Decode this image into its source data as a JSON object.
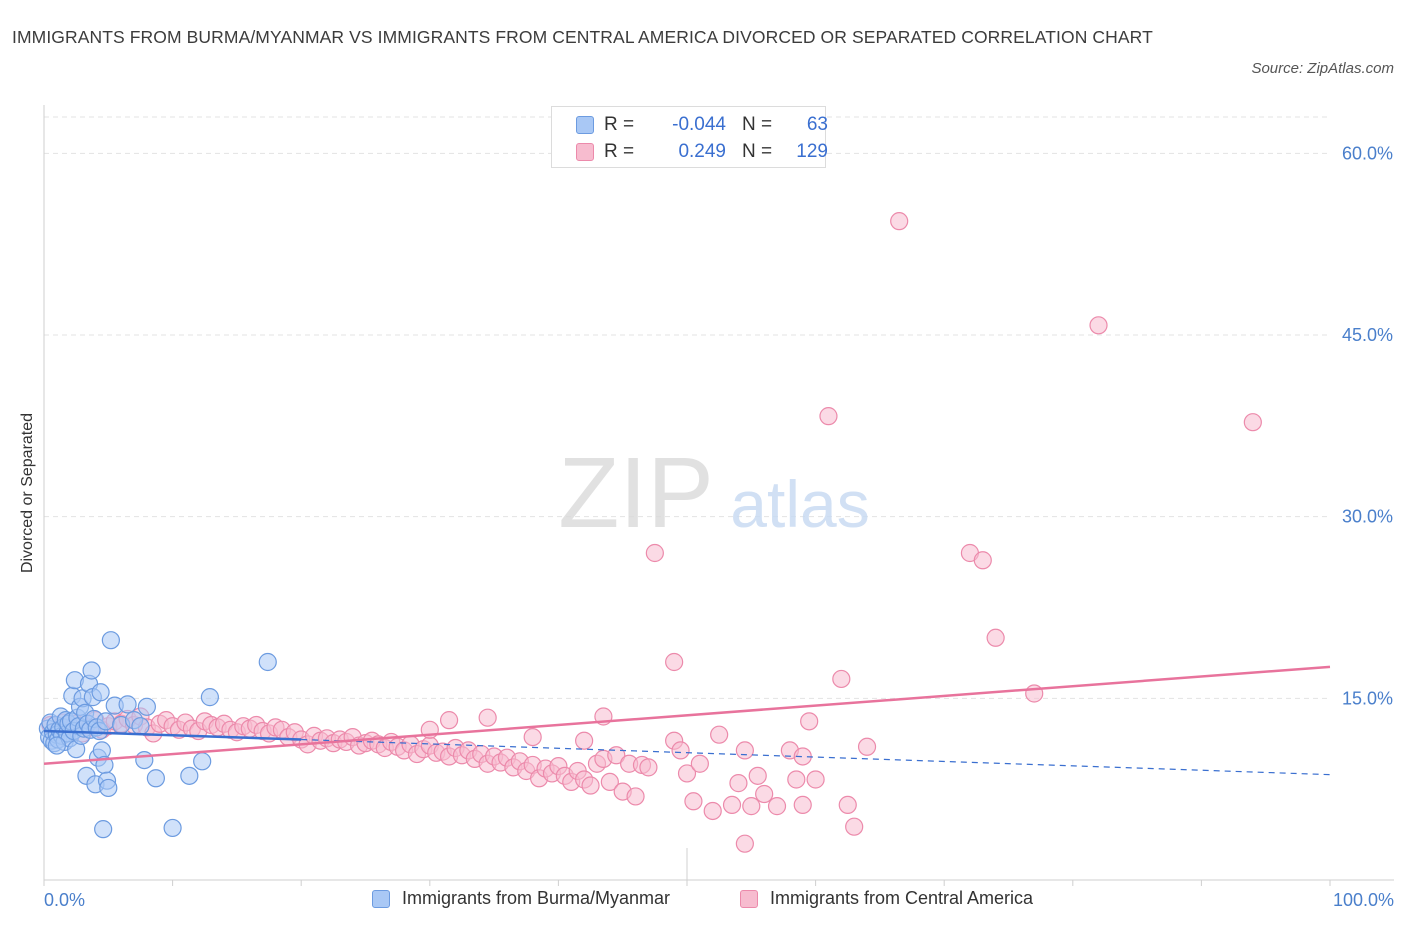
{
  "header": {
    "title": "IMMIGRANTS FROM BURMA/MYANMAR VS IMMIGRANTS FROM CENTRAL AMERICA DIVORCED OR SEPARATED CORRELATION CHART",
    "source": "Source: ZipAtlas.com"
  },
  "watermark": {
    "zip": "ZIP",
    "atlas": "atlas"
  },
  "legend": {
    "rows": [
      {
        "r_label": "R =",
        "r_value": "-0.044",
        "n_label": "N =",
        "n_value": "63"
      },
      {
        "r_label": "R =",
        "r_value": "0.249",
        "n_label": "N =",
        "n_value": "129"
      }
    ]
  },
  "chart_data": {
    "type": "scatter",
    "title": "IMMIGRANTS FROM BURMA/MYANMAR VS IMMIGRANTS FROM CENTRAL AMERICA DIVORCED OR SEPARATED CORRELATION CHART",
    "ylabel": "Divorced or Separated",
    "xlabel": "",
    "xlim": [
      0,
      100
    ],
    "ylim": [
      0,
      63
    ],
    "x_tick_labels": [
      "0.0%",
      "100.0%"
    ],
    "y_ticks": [
      {
        "value": 15,
        "label": "15.0%"
      },
      {
        "value": 30,
        "label": "30.0%"
      },
      {
        "value": 45,
        "label": "45.0%"
      },
      {
        "value": 60,
        "label": "60.0%"
      }
    ],
    "grid": true,
    "legend_position": "top-center",
    "colors": {
      "blue_fill": "#a9c8f5",
      "blue_stroke": "#6c9be0",
      "blue_line": "#3a6fd0",
      "pink_fill": "#f7bccf",
      "pink_stroke": "#ec8aab",
      "pink_line": "#e8739c",
      "accent_text": "#4a7fcb"
    },
    "series": [
      {
        "name": "Immigrants from Burma/Myanmar",
        "color": "#a9c8f5",
        "r": -0.044,
        "n": 63,
        "trend": {
          "x0": 0,
          "y0": 12.3,
          "x1": 20,
          "y1": 11.6,
          "x_dash_end": 100,
          "y_dash_end": 8.7
        },
        "points": [
          [
            0.3,
            12.5
          ],
          [
            0.4,
            11.8
          ],
          [
            0.5,
            13.0
          ],
          [
            0.6,
            11.5
          ],
          [
            0.7,
            12.2
          ],
          [
            0.8,
            11.3
          ],
          [
            0.9,
            12.8
          ],
          [
            1.0,
            12.0
          ],
          [
            1.1,
            11.6
          ],
          [
            1.2,
            12.4
          ],
          [
            1.3,
            13.5
          ],
          [
            1.4,
            11.9
          ],
          [
            1.5,
            12.6
          ],
          [
            1.6,
            11.4
          ],
          [
            1.7,
            13.2
          ],
          [
            1.8,
            12.1
          ],
          [
            1.9,
            12.9
          ],
          [
            2.0,
            11.7
          ],
          [
            2.1,
            13.1
          ],
          [
            2.2,
            15.2
          ],
          [
            2.3,
            12.3
          ],
          [
            2.4,
            16.5
          ],
          [
            2.5,
            10.8
          ],
          [
            2.6,
            13.4
          ],
          [
            2.7,
            12.7
          ],
          [
            2.8,
            14.3
          ],
          [
            2.9,
            11.9
          ],
          [
            3.0,
            15.0
          ],
          [
            3.1,
            12.5
          ],
          [
            3.2,
            13.8
          ],
          [
            3.3,
            8.6
          ],
          [
            3.4,
            12.9
          ],
          [
            3.5,
            16.2
          ],
          [
            3.6,
            12.4
          ],
          [
            3.7,
            17.3
          ],
          [
            3.8,
            15.1
          ],
          [
            3.9,
            13.3
          ],
          [
            4.0,
            7.9
          ],
          [
            4.1,
            12.6
          ],
          [
            4.2,
            10.1
          ],
          [
            4.3,
            12.3
          ],
          [
            4.4,
            15.5
          ],
          [
            4.5,
            10.7
          ],
          [
            4.6,
            4.2
          ],
          [
            4.7,
            9.5
          ],
          [
            4.8,
            13.1
          ],
          [
            4.9,
            8.2
          ],
          [
            5.0,
            7.6
          ],
          [
            5.2,
            19.8
          ],
          [
            5.5,
            14.4
          ],
          [
            6.0,
            12.8
          ],
          [
            6.5,
            14.5
          ],
          [
            7.0,
            13.2
          ],
          [
            7.5,
            12.7
          ],
          [
            7.8,
            9.9
          ],
          [
            8.0,
            14.3
          ],
          [
            8.7,
            8.4
          ],
          [
            10.0,
            4.3
          ],
          [
            11.3,
            8.6
          ],
          [
            12.3,
            9.8
          ],
          [
            12.9,
            15.1
          ],
          [
            17.4,
            18.0
          ],
          [
            1.0,
            11.1
          ]
        ]
      },
      {
        "name": "Immigrants from Central America",
        "color": "#f7bccf",
        "r": 0.249,
        "n": 129,
        "trend": {
          "x0": 0,
          "y0": 9.6,
          "x1": 100,
          "y1": 17.6
        },
        "points": [
          [
            0.5,
            12.8
          ],
          [
            1.0,
            12.2
          ],
          [
            1.5,
            13.0
          ],
          [
            2.0,
            12.5
          ],
          [
            2.5,
            12.9
          ],
          [
            3.0,
            12.1
          ],
          [
            3.5,
            12.6
          ],
          [
            4.0,
            13.2
          ],
          [
            4.5,
            12.4
          ],
          [
            5.0,
            12.7
          ],
          [
            5.5,
            13.1
          ],
          [
            6.0,
            12.9
          ],
          [
            6.5,
            13.3
          ],
          [
            7.0,
            12.8
          ],
          [
            7.5,
            13.5
          ],
          [
            8.0,
            12.6
          ],
          [
            8.5,
            12.1
          ],
          [
            9.0,
            12.9
          ],
          [
            9.5,
            13.2
          ],
          [
            10.0,
            12.7
          ],
          [
            10.5,
            12.4
          ],
          [
            11.0,
            13.0
          ],
          [
            11.5,
            12.5
          ],
          [
            12.0,
            12.3
          ],
          [
            12.5,
            13.1
          ],
          [
            13.0,
            12.8
          ],
          [
            13.5,
            12.6
          ],
          [
            14.0,
            12.9
          ],
          [
            14.5,
            12.4
          ],
          [
            15.0,
            12.2
          ],
          [
            15.5,
            12.7
          ],
          [
            16.0,
            12.5
          ],
          [
            16.5,
            12.8
          ],
          [
            17.0,
            12.3
          ],
          [
            17.5,
            12.1
          ],
          [
            18.0,
            12.6
          ],
          [
            18.5,
            12.4
          ],
          [
            19.0,
            11.8
          ],
          [
            19.5,
            12.2
          ],
          [
            20.0,
            11.6
          ],
          [
            20.5,
            11.2
          ],
          [
            21.0,
            11.9
          ],
          [
            21.5,
            11.5
          ],
          [
            22.0,
            11.7
          ],
          [
            22.5,
            11.3
          ],
          [
            23.0,
            11.6
          ],
          [
            23.5,
            11.4
          ],
          [
            24.0,
            11.8
          ],
          [
            24.5,
            11.1
          ],
          [
            25.0,
            11.3
          ],
          [
            25.5,
            11.5
          ],
          [
            26.0,
            11.2
          ],
          [
            26.5,
            10.9
          ],
          [
            27.0,
            11.4
          ],
          [
            27.5,
            11.0
          ],
          [
            28.0,
            10.7
          ],
          [
            28.5,
            11.2
          ],
          [
            29.0,
            10.4
          ],
          [
            29.5,
            10.8
          ],
          [
            30.0,
            11.1
          ],
          [
            30.5,
            10.5
          ],
          [
            31.0,
            10.6
          ],
          [
            31.5,
            10.2
          ],
          [
            32.0,
            10.9
          ],
          [
            32.5,
            10.3
          ],
          [
            33.0,
            10.7
          ],
          [
            33.5,
            10.0
          ],
          [
            34.0,
            10.4
          ],
          [
            34.5,
            9.6
          ],
          [
            35.0,
            10.2
          ],
          [
            35.5,
            9.7
          ],
          [
            36.0,
            10.1
          ],
          [
            36.5,
            9.3
          ],
          [
            37.0,
            9.8
          ],
          [
            37.5,
            9.0
          ],
          [
            38.0,
            9.5
          ],
          [
            38.5,
            8.4
          ],
          [
            39.0,
            9.2
          ],
          [
            39.5,
            8.8
          ],
          [
            40.0,
            9.4
          ],
          [
            40.5,
            8.6
          ],
          [
            41.0,
            8.1
          ],
          [
            41.5,
            9.0
          ],
          [
            42.0,
            8.3
          ],
          [
            42.5,
            7.8
          ],
          [
            43.0,
            9.6
          ],
          [
            43.5,
            10.0
          ],
          [
            44.0,
            8.1
          ],
          [
            44.5,
            10.3
          ],
          [
            45.0,
            7.3
          ],
          [
            45.5,
            9.6
          ],
          [
            46.0,
            6.9
          ],
          [
            46.5,
            9.5
          ],
          [
            47.0,
            9.3
          ],
          [
            38.0,
            11.8
          ],
          [
            42.0,
            11.5
          ],
          [
            30.0,
            12.4
          ],
          [
            31.5,
            13.2
          ],
          [
            34.5,
            13.4
          ],
          [
            43.5,
            13.5
          ],
          [
            47.5,
            27.0
          ],
          [
            49.0,
            11.5
          ],
          [
            49.5,
            10.7
          ],
          [
            49.0,
            18.0
          ],
          [
            50.0,
            8.8
          ],
          [
            50.5,
            6.5
          ],
          [
            51.0,
            9.6
          ],
          [
            52.0,
            5.7
          ],
          [
            52.5,
            12.0
          ],
          [
            53.5,
            6.2
          ],
          [
            54.0,
            8.0
          ],
          [
            54.5,
            10.7
          ],
          [
            55.0,
            6.1
          ],
          [
            55.5,
            8.6
          ],
          [
            56.0,
            7.1
          ],
          [
            57.0,
            6.1
          ],
          [
            58.0,
            10.7
          ],
          [
            58.5,
            8.3
          ],
          [
            59.0,
            6.2
          ],
          [
            59.5,
            13.1
          ],
          [
            60.0,
            8.3
          ],
          [
            61.0,
            38.3
          ],
          [
            62.0,
            16.6
          ],
          [
            62.5,
            6.2
          ],
          [
            63.0,
            4.4
          ],
          [
            64.0,
            11.0
          ],
          [
            66.5,
            54.4
          ],
          [
            72.0,
            27.0
          ],
          [
            73.0,
            26.4
          ],
          [
            74.0,
            20.0
          ],
          [
            77.0,
            15.4
          ],
          [
            82.0,
            45.8
          ],
          [
            94.0,
            37.8
          ],
          [
            54.5,
            3.0
          ],
          [
            59.0,
            10.2
          ]
        ]
      }
    ]
  },
  "bottom_legend": [
    {
      "label": "Immigrants from Burma/Myanmar"
    },
    {
      "label": "Immigrants from Central America"
    }
  ]
}
